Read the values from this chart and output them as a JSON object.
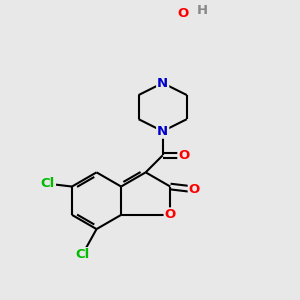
{
  "background_color": "#e8e8e8",
  "bond_color": "#000000",
  "bond_width": 1.5,
  "atom_colors": {
    "C": "#000000",
    "N": "#0000cc",
    "O": "#ff0000",
    "Cl": "#00bb00",
    "H": "#888888"
  },
  "font_size": 9.5,
  "figsize": [
    3.0,
    3.0
  ],
  "dpi": 100
}
